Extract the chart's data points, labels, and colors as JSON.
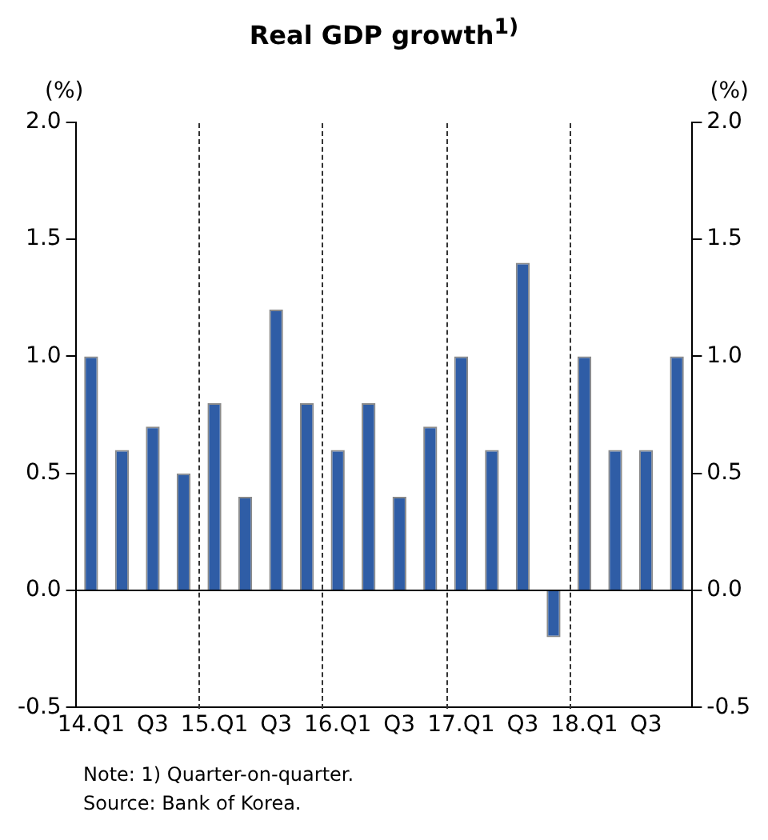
{
  "chart_data": {
    "type": "bar",
    "title": "Real GDP growth$^{1)}$",
    "categories": [
      "14.Q1",
      null,
      "Q3",
      null,
      "15.Q1",
      null,
      "Q3",
      null,
      "16.Q1",
      null,
      "Q3",
      null,
      "17.Q1",
      null,
      "Q3",
      null,
      "18.Q1",
      null,
      "Q3",
      null
    ],
    "values": [
      1.0,
      0.6,
      0.7,
      0.5,
      0.8,
      0.4,
      1.2,
      0.8,
      0.6,
      0.8,
      0.4,
      0.7,
      1.0,
      0.6,
      1.4,
      -0.2,
      1.0,
      0.6,
      0.6,
      1.0
    ],
    "color": "#2f5da6",
    "ylabel": "(%)",
    "y2label": "(%)",
    "ylim": [
      -0.5,
      2.0
    ],
    "yticks": [
      {
        "value": -0.5,
        "label": "-0.5"
      },
      {
        "value": 0,
        "label": "0.0"
      },
      {
        "value": 0.5,
        "label": "0.5"
      },
      {
        "value": 1,
        "label": "1.0"
      },
      {
        "value": 1.5,
        "label": "1.5"
      },
      {
        "value": 2,
        "label": "2.0"
      }
    ],
    "y2lim": [
      -0.5,
      2.0
    ],
    "y2ticks": [
      {
        "value": -0.5,
        "label": "-0.5"
      },
      {
        "value": 0,
        "label": "0.0"
      },
      {
        "value": 0.5,
        "label": "0.5"
      },
      {
        "value": 1,
        "label": "1.0"
      },
      {
        "value": 1.5,
        "label": "1.5"
      },
      {
        "value": 2,
        "label": "2.0"
      }
    ],
    "grid": false,
    "legend": false,
    "annotations": [
      "Note: 1) Quarter-on-quarter.",
      "Source: Bank of Korea."
    ]
  }
}
